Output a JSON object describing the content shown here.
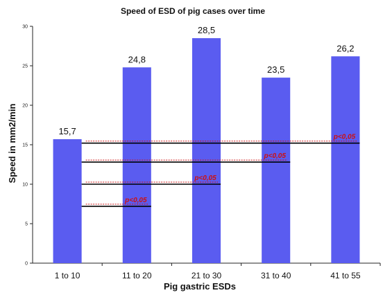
{
  "chart_data": {
    "type": "bar",
    "title": "Speed of ESD of pig cases over time",
    "xlabel": "Pig gastric ESDs",
    "ylabel": "Speed in mm2/min",
    "categories": [
      "1 to 10",
      "11 to 20",
      "21 to 30",
      "31 to 40",
      "41 to 55"
    ],
    "values": [
      15.7,
      24.8,
      28.5,
      23.5,
      26.2
    ],
    "value_labels": [
      "15,7",
      "24,8",
      "28,5",
      "23,5",
      "26,2"
    ],
    "ylim": [
      0,
      30
    ],
    "yticks": [
      0,
      5,
      10,
      15,
      20,
      25,
      30
    ],
    "bar_color": "#5a5cf0",
    "grid": false,
    "annotations": [
      {
        "type": "comparison",
        "from": "1 to 10",
        "to": "41 to 55",
        "label": "p<0,05",
        "y": 15.2
      },
      {
        "type": "comparison",
        "from": "1 to 10",
        "to": "31 to 40",
        "label": "p<0,05",
        "y": 12.8
      },
      {
        "type": "comparison",
        "from": "1 to 10",
        "to": "21 to 30",
        "label": "p<0,05",
        "y": 10.0
      },
      {
        "type": "comparison",
        "from": "1 to 10",
        "to": "11 to 20",
        "label": "p<0,05",
        "y": 7.2
      }
    ],
    "annotation_color": "#cc1111"
  }
}
